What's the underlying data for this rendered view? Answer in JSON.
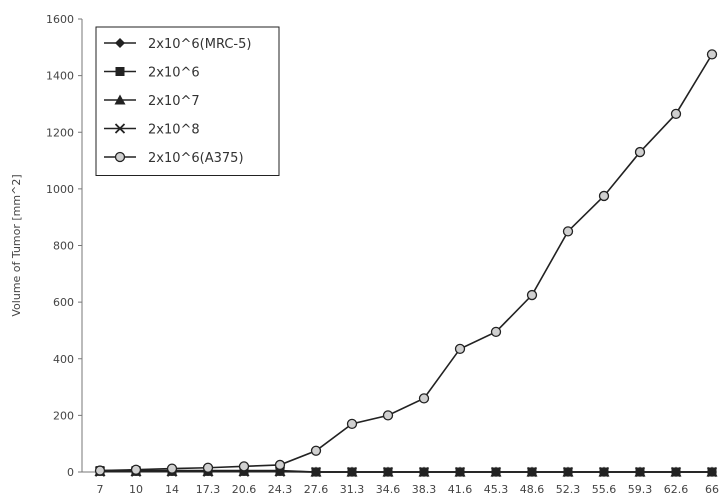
{
  "chart_data": {
    "type": "line",
    "title": "",
    "xlabel": "",
    "ylabel": "Volume of Tumor [mm^2]",
    "ylim": [
      0,
      1600
    ],
    "y_ticks": [
      0,
      200,
      400,
      600,
      800,
      1000,
      1200,
      1400,
      1600
    ],
    "x_categories": [
      "7",
      "10",
      "14",
      "17.3",
      "20.6",
      "24.3",
      "27.6",
      "31.3",
      "34.6",
      "38.3",
      "41.6",
      "45.3",
      "48.6",
      "52.3",
      "55.6",
      "59.3",
      "62.6",
      "66"
    ],
    "grid": false,
    "legend_position": "top-left",
    "series": [
      {
        "name": "2x10^6(MRC-5)",
        "marker": "diamond",
        "values": [
          3,
          3,
          3,
          3,
          3,
          3,
          0,
          0,
          0,
          0,
          0,
          0,
          0,
          0,
          0,
          0,
          0,
          0
        ]
      },
      {
        "name": "2x10^6",
        "marker": "square",
        "values": [
          5,
          5,
          5,
          5,
          5,
          5,
          0,
          0,
          0,
          0,
          0,
          0,
          0,
          0,
          0,
          0,
          0,
          0
        ]
      },
      {
        "name": "2x10^7",
        "marker": "triangle",
        "values": [
          2,
          2,
          2,
          2,
          2,
          2,
          0,
          0,
          0,
          0,
          0,
          0,
          0,
          0,
          0,
          0,
          0,
          0
        ]
      },
      {
        "name": "2x10^8",
        "marker": "x",
        "values": [
          1,
          1,
          1,
          1,
          1,
          1,
          0,
          0,
          0,
          0,
          0,
          0,
          0,
          0,
          0,
          0,
          0,
          0
        ]
      },
      {
        "name": "2x10^6(A375)",
        "marker": "circle",
        "values": [
          5,
          8,
          12,
          15,
          20,
          25,
          75,
          170,
          200,
          260,
          435,
          495,
          625,
          850,
          975,
          1130,
          1265,
          1475
        ]
      }
    ]
  },
  "colors": {
    "line": "#222222",
    "axis": "#777777",
    "circle_fill": "#d0d0d0"
  }
}
